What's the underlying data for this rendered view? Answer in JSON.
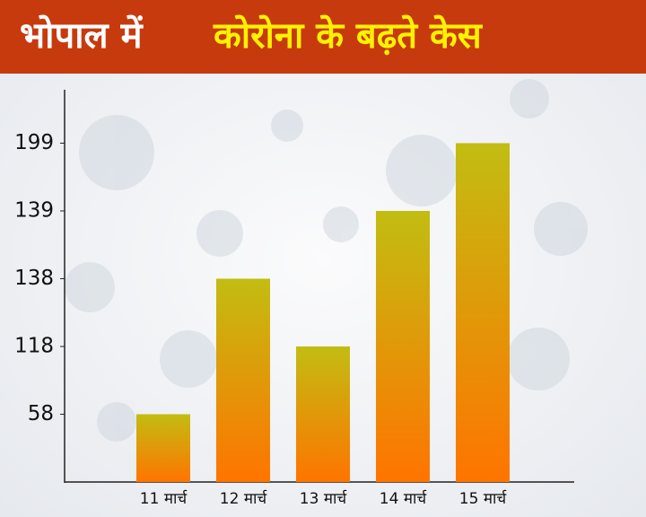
{
  "chart_data": {
    "type": "bar",
    "title_parts": [
      "भोपाल में",
      "कोरोना के बढ़ते केस"
    ],
    "categories": [
      "11 मार्च",
      "12 मार्च",
      "13 मार्च",
      "14 मार्च",
      "15 मार्च"
    ],
    "values": [
      58,
      138,
      118,
      139,
      199
    ],
    "yticks": [
      58,
      118,
      138,
      139,
      199
    ],
    "color_top": "#c2bd12",
    "color_bottom": "#ff7400"
  }
}
